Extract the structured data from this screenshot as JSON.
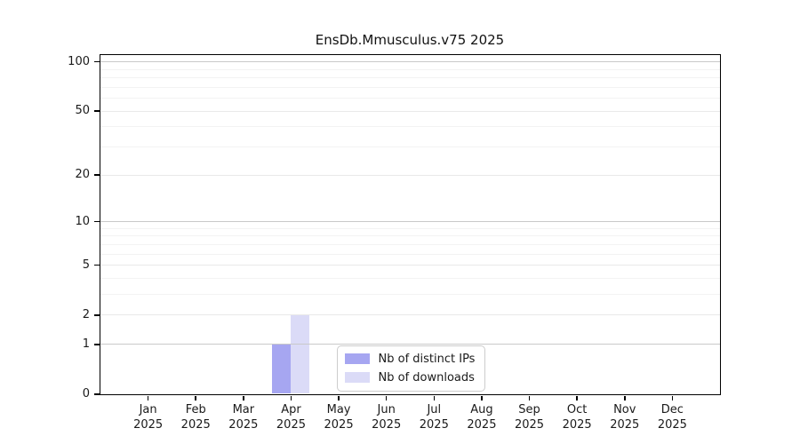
{
  "chart_data": {
    "type": "bar",
    "title": "EnsDb.Mmusculus.v75 2025",
    "categories": [
      "Jan",
      "Feb",
      "Mar",
      "Apr",
      "May",
      "Jun",
      "Jul",
      "Aug",
      "Sep",
      "Oct",
      "Nov",
      "Dec"
    ],
    "category_sublabel": "2025",
    "series": [
      {
        "name": "Nb of distinct IPs",
        "color": "#a6a6f1",
        "values": [
          0,
          0,
          0,
          1,
          0,
          0,
          0,
          0,
          0,
          0,
          0,
          0
        ]
      },
      {
        "name": "Nb of downloads",
        "color": "#dbdbf7",
        "values": [
          0,
          0,
          0,
          2,
          0,
          0,
          0,
          0,
          0,
          0,
          0,
          0
        ]
      }
    ],
    "xlabel": "",
    "ylabel": "",
    "yscale": "log1p",
    "ylim": [
      0,
      110
    ],
    "yticks": [
      0,
      1,
      2,
      5,
      10,
      20,
      50,
      100
    ],
    "decade_yticks": [
      1,
      10,
      100
    ],
    "minor_yticks": [
      3,
      4,
      6,
      7,
      8,
      9,
      30,
      40,
      60,
      70,
      80,
      90
    ],
    "grid": "horizontal",
    "legend_position": "inside-bottom-center"
  }
}
